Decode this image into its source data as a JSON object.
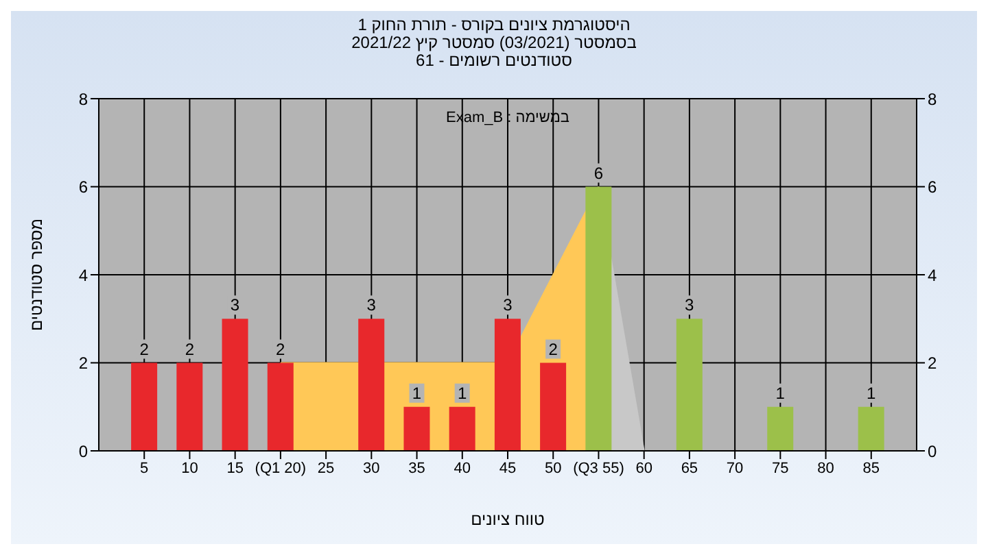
{
  "chart_data": {
    "type": "bar",
    "title": "היסטוגרמת ציונים בקורס - תורת החוק 1",
    "subtitle": "בסמסטר  (03/2021)  סמסטר קיץ 2021/22\nסטודנטים רשומים - 61",
    "xlabel": "טווח ציונים",
    "ylabel": "מספר סטודנטים",
    "annotations": [
      "במשימה : Exam_B"
    ],
    "series": [
      {
        "type": "area",
        "color": "#ffc857",
        "x": [
          20,
          45,
          55
        ],
        "values": [
          2,
          2,
          6
        ]
      },
      {
        "type": "area",
        "color": "#c8c8c8",
        "x": [
          55,
          60
        ],
        "values": [
          6,
          0
        ]
      },
      {
        "x": [
          5,
          10,
          15,
          20,
          30,
          35,
          40,
          45,
          50,
          55,
          65,
          75,
          85
        ],
        "values": [
          2,
          2,
          3,
          2,
          3,
          1,
          1,
          3,
          2,
          6,
          3,
          1,
          1
        ],
        "value_labels": [
          "2",
          "2",
          "3",
          "2",
          "3",
          "1",
          "1",
          "3",
          "2",
          "6",
          "3",
          "1",
          "1"
        ],
        "colors": [
          "#e8282c",
          "#e8282c",
          "#e8282c",
          "#e8282c",
          "#e8282c",
          "#e8282c",
          "#e8282c",
          "#e8282c",
          "#e8282c",
          "#9cc04a",
          "#9cc04a",
          "#9cc04a",
          "#9cc04a"
        ]
      }
    ],
    "xlim": [
      0,
      90
    ],
    "xticks": [
      5,
      10,
      15,
      {
        "value": 20,
        "label": "(Q1 20)"
      },
      25,
      30,
      35,
      40,
      45,
      50,
      {
        "value": 55,
        "label": "(Q3 55)"
      },
      60,
      65,
      70,
      75,
      80,
      85
    ],
    "ylim": [
      0,
      8
    ],
    "yticks": [
      0,
      2,
      4,
      6,
      8
    ],
    "y2lim": [
      0,
      8
    ],
    "y2ticks": [
      0,
      2,
      4,
      6,
      8
    ],
    "grid": true,
    "legend": false
  }
}
